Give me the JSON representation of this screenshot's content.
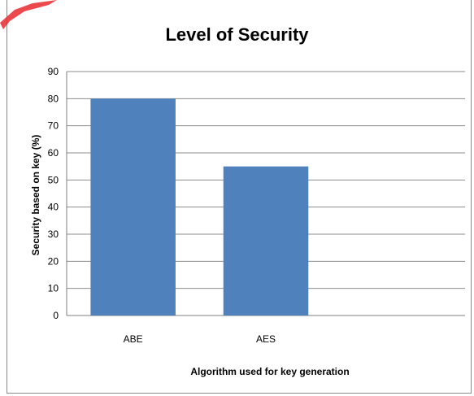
{
  "chart_data": {
    "type": "bar",
    "title": "Level of Security",
    "xlabel": "Algorithm used for key generation",
    "ylabel": "Security based on key (%)",
    "categories": [
      "ABE",
      "AES",
      ""
    ],
    "values": [
      80,
      55,
      null
    ],
    "ylim": [
      0,
      90
    ],
    "yticks": [
      0,
      10,
      20,
      30,
      40,
      50,
      60,
      70,
      80,
      90
    ],
    "grid": true,
    "legend": "none",
    "bar_color": "#4f81bd",
    "grid_color": "#8c8c8c"
  },
  "decorations": {
    "corner_mark_color": "#e8292f"
  }
}
